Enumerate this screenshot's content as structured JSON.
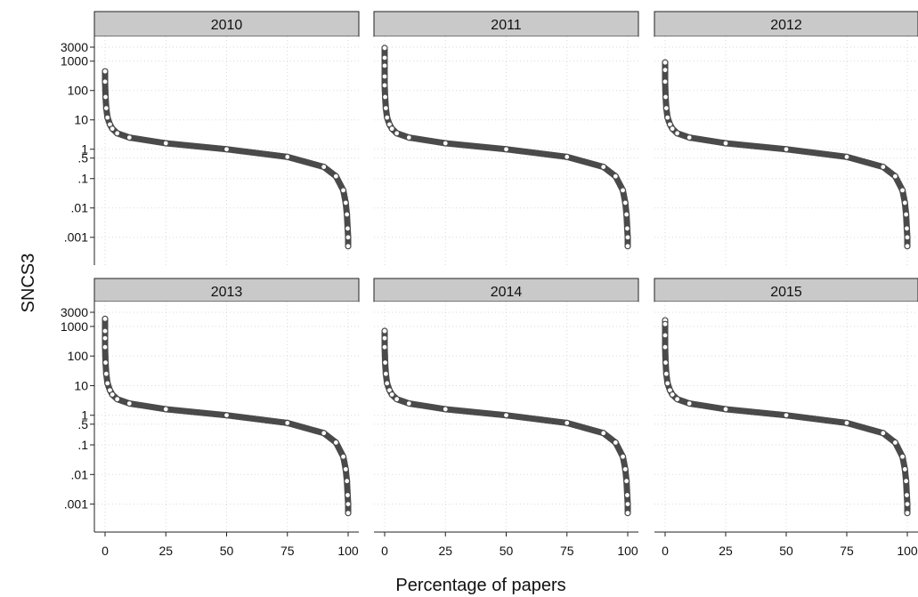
{
  "chart_data": {
    "type": "scatter",
    "xlabel": "Percentage of papers",
    "ylabel": "SNCS3",
    "y_scale": "log",
    "xlim": [
      0,
      100
    ],
    "ylim": [
      0.0003,
      3000
    ],
    "x_ticks": [
      0,
      25,
      50,
      75,
      100
    ],
    "y_ticks": [
      {
        "value": 3000,
        "label": "3000"
      },
      {
        "value": 1000,
        "label": "1000"
      },
      {
        "value": 100,
        "label": "100"
      },
      {
        "value": 10,
        "label": "10"
      },
      {
        "value": 1,
        "label": "1"
      },
      {
        "value": 0.5,
        "label": ".5"
      },
      {
        "value": 0.1,
        "label": ".1"
      },
      {
        "value": 0.01,
        "label": ".01"
      },
      {
        "value": 0.001,
        "label": ".001"
      }
    ],
    "grid": true,
    "colors": {
      "marker": "#4a4a4a",
      "strip_fill": "#c9c9c9",
      "grid": "#d9d9d9"
    },
    "panels": [
      {
        "title": "2010",
        "series": [
          {
            "x": [
              0,
              0,
              0.2,
              0.5,
              1,
              2,
              3,
              5,
              10,
              25,
              50,
              75,
              90,
              95,
              98,
              99,
              99.5,
              99.8,
              100,
              100
            ],
            "y": [
              450,
              200,
              60,
              25,
              12,
              7,
              5,
              3.5,
              2.5,
              1.6,
              1.0,
              0.55,
              0.25,
              0.12,
              0.04,
              0.015,
              0.006,
              0.002,
              0.001,
              0.0005
            ]
          }
        ]
      },
      {
        "title": "2011",
        "series": [
          {
            "x": [
              0,
              0,
              0,
              0,
              0,
              0.2,
              0.5,
              1,
              2,
              3,
              5,
              10,
              25,
              50,
              75,
              90,
              95,
              98,
              99,
              99.5,
              99.8,
              100,
              100
            ],
            "y": [
              2800,
              1300,
              700,
              300,
              150,
              60,
              25,
              12,
              7,
              5,
              3.5,
              2.5,
              1.6,
              1.0,
              0.55,
              0.25,
              0.12,
              0.04,
              0.015,
              0.006,
              0.002,
              0.001,
              0.0005
            ]
          }
        ]
      },
      {
        "title": "2012",
        "series": [
          {
            "x": [
              0,
              0,
              0,
              0.2,
              0.5,
              1,
              2,
              3,
              5,
              10,
              25,
              50,
              75,
              90,
              95,
              98,
              99,
              99.5,
              99.8,
              100,
              100
            ],
            "y": [
              900,
              500,
              200,
              60,
              25,
              12,
              7,
              5,
              3.5,
              2.5,
              1.6,
              1.0,
              0.55,
              0.25,
              0.12,
              0.04,
              0.015,
              0.006,
              0.002,
              0.001,
              0.0005
            ]
          }
        ]
      },
      {
        "title": "2013",
        "series": [
          {
            "x": [
              0,
              0,
              0,
              0,
              0.2,
              0.5,
              1,
              2,
              3,
              5,
              10,
              25,
              50,
              75,
              90,
              95,
              98,
              99,
              99.5,
              99.8,
              100,
              100
            ],
            "y": [
              1800,
              700,
              400,
              200,
              60,
              25,
              12,
              7,
              5,
              3.5,
              2.5,
              1.6,
              1.0,
              0.55,
              0.25,
              0.12,
              0.04,
              0.015,
              0.006,
              0.002,
              0.001,
              0.0005
            ]
          }
        ]
      },
      {
        "title": "2014",
        "series": [
          {
            "x": [
              0,
              0,
              0,
              0.2,
              0.5,
              1,
              2,
              3,
              5,
              10,
              25,
              50,
              75,
              90,
              95,
              98,
              99,
              99.5,
              99.8,
              100,
              100
            ],
            "y": [
              700,
              400,
              200,
              60,
              25,
              12,
              7,
              5,
              3.5,
              2.5,
              1.6,
              1.0,
              0.55,
              0.25,
              0.12,
              0.04,
              0.015,
              0.006,
              0.002,
              0.001,
              0.0005
            ]
          }
        ]
      },
      {
        "title": "2015",
        "series": [
          {
            "x": [
              0,
              0,
              0,
              0,
              0.2,
              0.5,
              1,
              2,
              3,
              5,
              10,
              25,
              50,
              75,
              90,
              95,
              98,
              99,
              99.5,
              99.8,
              100,
              100
            ],
            "y": [
              1600,
              1200,
              500,
              200,
              60,
              25,
              12,
              7,
              5,
              3.5,
              2.5,
              1.6,
              1.0,
              0.55,
              0.25,
              0.12,
              0.04,
              0.015,
              0.006,
              0.002,
              0.001,
              0.0005
            ]
          }
        ]
      }
    ]
  }
}
